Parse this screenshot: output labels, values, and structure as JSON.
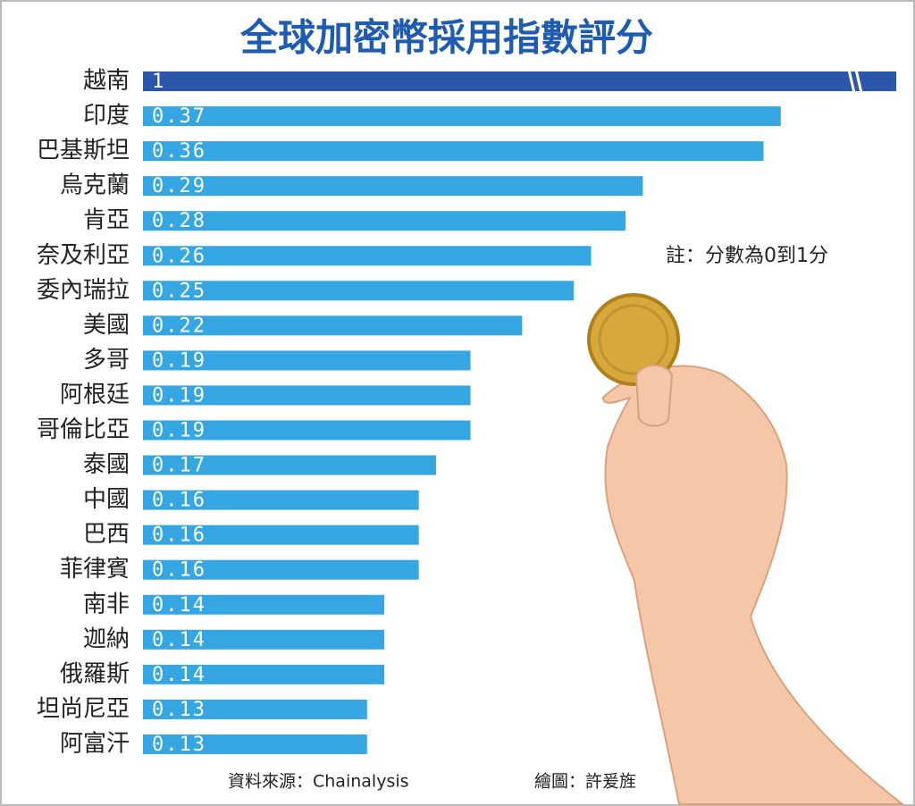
{
  "chart_data": {
    "type": "bar",
    "orientation": "horizontal",
    "title": "全球加密幣採用指數評分",
    "categories": [
      "越南",
      "印度",
      "巴基斯坦",
      "烏克蘭",
      "肯亞",
      "奈及利亞",
      "委內瑞拉",
      "美國",
      "多哥",
      "阿根廷",
      "哥倫比亞",
      "泰國",
      "中國",
      "巴西",
      "菲律賓",
      "南非",
      "迦納",
      "俄羅斯",
      "坦尚尼亞",
      "阿富汗"
    ],
    "values": [
      1,
      0.37,
      0.36,
      0.29,
      0.28,
      0.26,
      0.25,
      0.22,
      0.19,
      0.19,
      0.19,
      0.17,
      0.16,
      0.16,
      0.16,
      0.14,
      0.14,
      0.14,
      0.13,
      0.13
    ],
    "colors": [
      "#2b56a9",
      "#35a6e1",
      "#35a6e1",
      "#35a6e1",
      "#35a6e1",
      "#35a6e1",
      "#35a6e1",
      "#35a6e1",
      "#35a6e1",
      "#35a6e1",
      "#35a6e1",
      "#35a6e1",
      "#35a6e1",
      "#35a6e1",
      "#35a6e1",
      "#35a6e1",
      "#35a6e1",
      "#35a6e1",
      "#35a6e1",
      "#35a6e1"
    ],
    "xlim": [
      0,
      0.437
    ],
    "axis_break": true,
    "note": "註：分數為0到1分",
    "source": "資料來源：Chainalysis",
    "credit": "繪圖：許爰旌"
  }
}
